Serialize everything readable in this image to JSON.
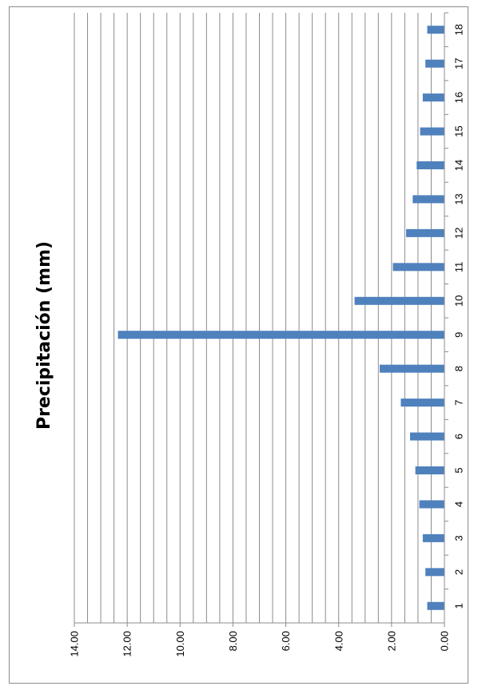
{
  "chart_data": {
    "type": "bar",
    "orientation": "rotated",
    "title": "Precipitación (mm)",
    "categories": [
      "1",
      "2",
      "3",
      "4",
      "5",
      "6",
      "7",
      "8",
      "9",
      "10",
      "11",
      "12",
      "13",
      "14",
      "15",
      "16",
      "17",
      "18"
    ],
    "values": [
      0.65,
      0.72,
      0.82,
      0.95,
      1.1,
      1.3,
      1.65,
      2.45,
      12.35,
      3.4,
      1.95,
      1.45,
      1.2,
      1.05,
      0.92,
      0.82,
      0.72,
      0.65
    ],
    "ylim": [
      0,
      14
    ],
    "y_ticks": [
      "0.00",
      "2.00",
      "4.00",
      "6.00",
      "8.00",
      "10.00",
      "12.00",
      "14.00"
    ],
    "y_minor_step": 0.5,
    "grid": true,
    "bar_color": "#4f81bd",
    "grid_color": "#8c8c8c",
    "legend": "none"
  }
}
